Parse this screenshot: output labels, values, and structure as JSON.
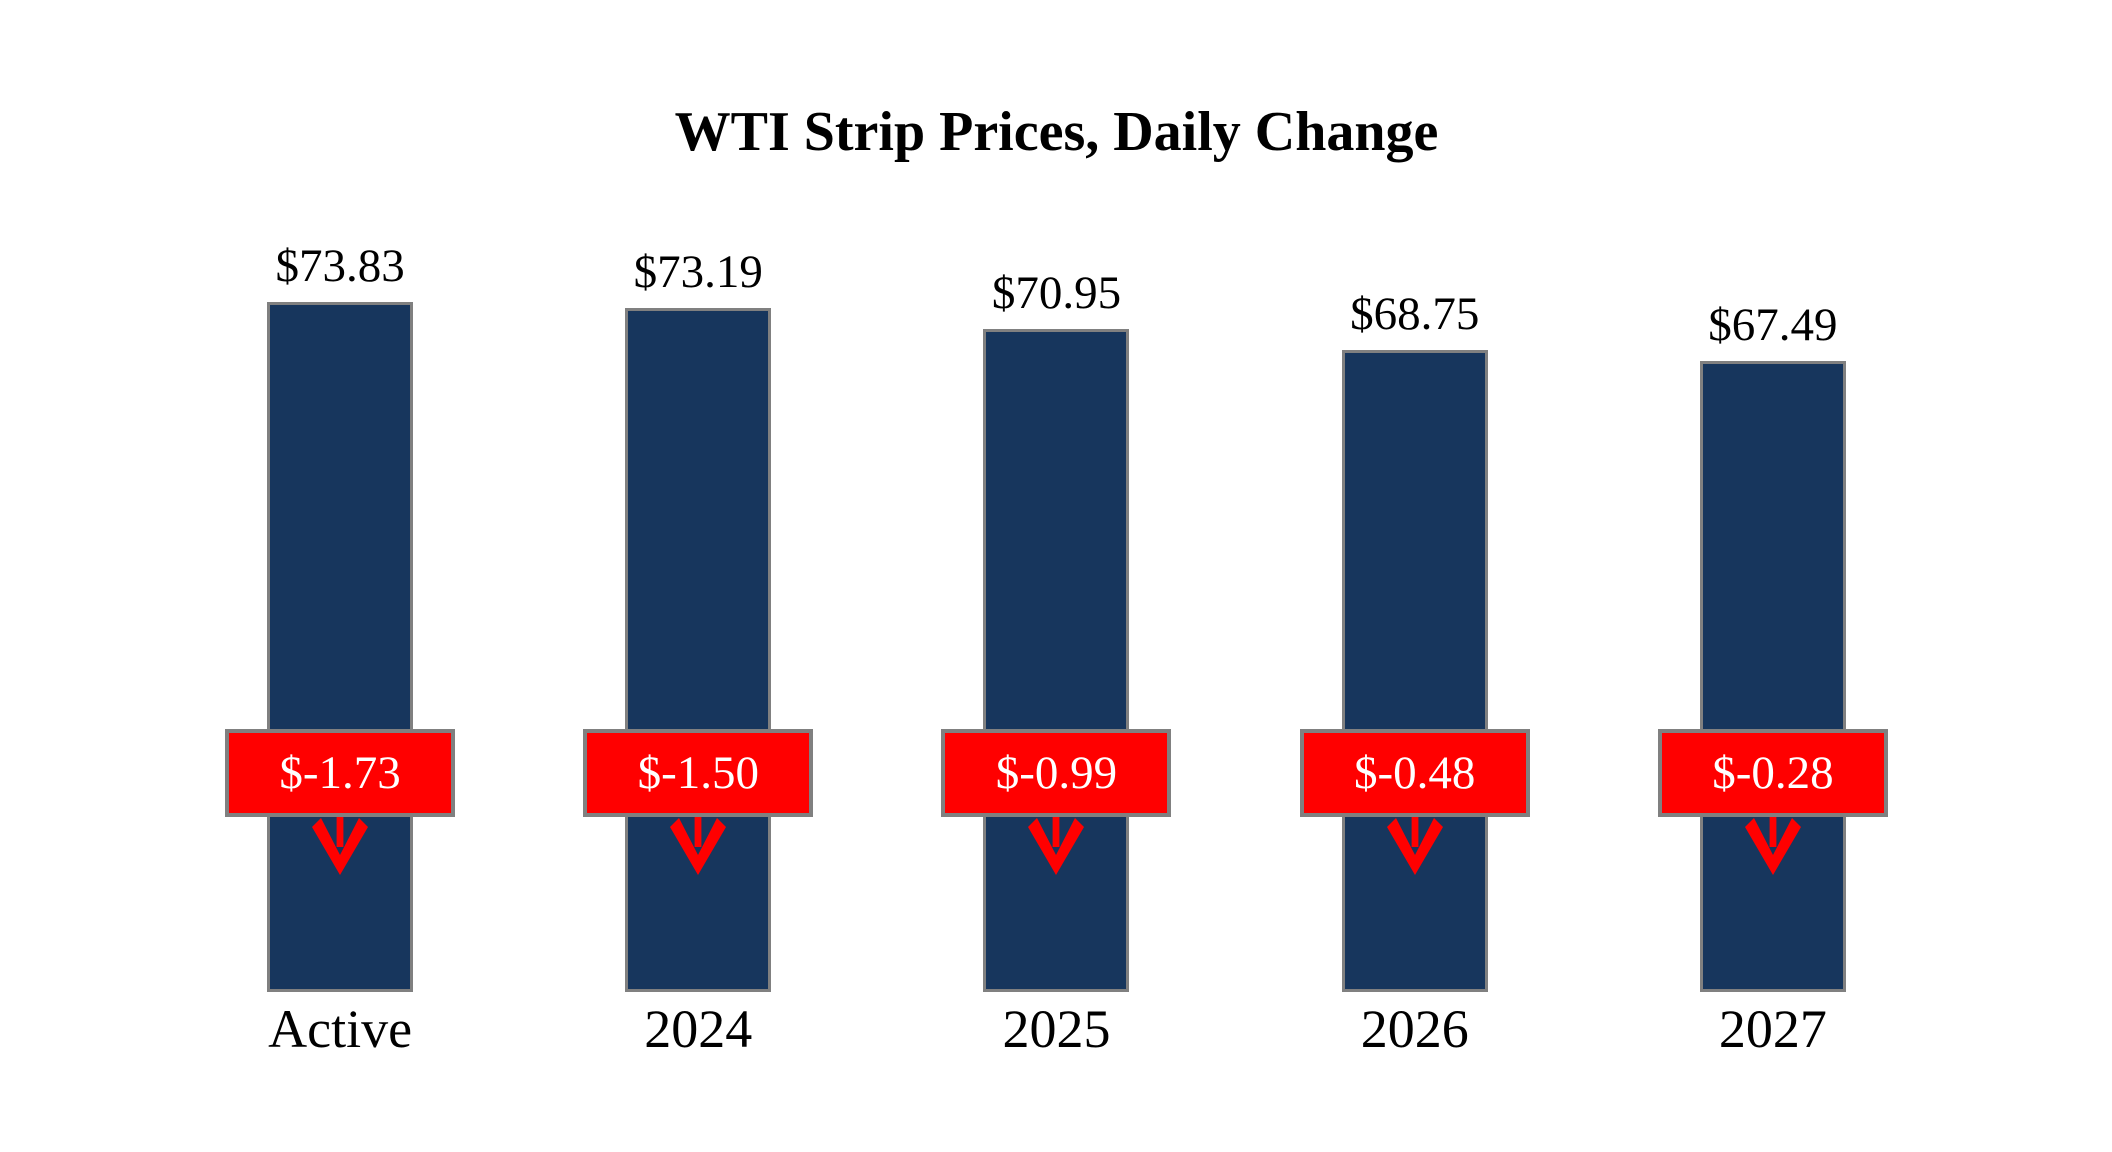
{
  "title": "WTI Strip Prices, Daily Change",
  "colors": {
    "background": "#FFFFFF",
    "text": "#000000",
    "bar_fill": "#17365D",
    "badge_fill": "#FF0000",
    "badge_text": "#FFFFFF",
    "arrow": "#FF0000",
    "border_gray": "#808080"
  },
  "chart_data": {
    "type": "bar",
    "title": "WTI Strip Prices, Daily Change",
    "categories": [
      "Active",
      "2024",
      "2025",
      "2026",
      "2027"
    ],
    "series": [
      {
        "name": "Strip Price",
        "values": [
          73.83,
          73.19,
          70.95,
          68.75,
          67.49
        ]
      },
      {
        "name": "Daily Change",
        "values": [
          -1.73,
          -1.5,
          -0.99,
          -0.48,
          -0.28
        ]
      }
    ],
    "bars": [
      {
        "category": "Active",
        "price": 73.83,
        "price_label": "$73.83",
        "change": -1.73,
        "change_label": "$-1.73"
      },
      {
        "category": "2024",
        "price": 73.19,
        "price_label": "$73.19",
        "change": -1.5,
        "change_label": "$-1.50"
      },
      {
        "category": "2025",
        "price": 70.95,
        "price_label": "$70.95",
        "change": -0.99,
        "change_label": "$-0.99"
      },
      {
        "category": "2026",
        "price": 68.75,
        "price_label": "$68.75",
        "change": -0.48,
        "change_label": "$-0.48"
      },
      {
        "category": "2027",
        "price": 67.49,
        "price_label": "$67.49",
        "change": -0.28,
        "change_label": "$-0.28"
      }
    ],
    "ylim": [
      0,
      75
    ],
    "grid": false,
    "legend": "none",
    "axes_visible": false
  }
}
